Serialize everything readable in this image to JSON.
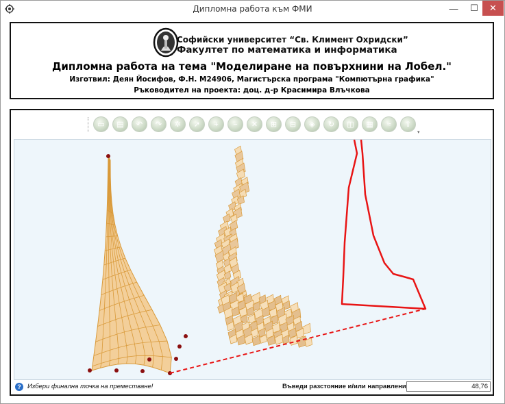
{
  "window": {
    "title": "Дипломна работа към ФМИ",
    "minimize_glyph": "—",
    "maximize_glyph": "☐",
    "close_glyph": "✕"
  },
  "header": {
    "university": "Софийски университет “Св. Климент Охридски”",
    "faculty": "Факултет по математика и информатика",
    "thesis_title": "Дипломна работа на тема \"Моделиране на повърхнини на Лобел.\"",
    "author_line": "Изготвил: Деян Йосифов, Ф.Н. M24906, Магистърска програма \"Компютърна графика\"",
    "advisor_line": "Ръководител на проекта: доц. д-р Красимира Влъчкова"
  },
  "toolbar": {
    "buttons": [
      {
        "name": "open-file-icon"
      },
      {
        "name": "save-icon"
      },
      {
        "name": "undo-icon"
      },
      {
        "name": "redo-icon"
      },
      {
        "name": "settings-gear-icon"
      },
      {
        "name": "select-cursor-icon"
      },
      {
        "name": "add-icon"
      },
      {
        "name": "remove-icon"
      },
      {
        "name": "delete-icon"
      },
      {
        "name": "move-point-icon"
      },
      {
        "name": "subdivide-icon"
      },
      {
        "name": "mesh-icon"
      },
      {
        "name": "rotate-icon"
      },
      {
        "name": "reflect-icon"
      },
      {
        "name": "surface-icon"
      },
      {
        "name": "smooth-icon"
      },
      {
        "name": "export-icon"
      }
    ],
    "overflow_glyph": "▾"
  },
  "status": {
    "help_glyph": "?",
    "message": "Избери финална точка на преместване!",
    "distance_label": "Въведи разстояние и/или направление:",
    "distance_value": "48,76"
  },
  "colors": {
    "viewport_bg": "#eef6fb",
    "surface_fill": "#f3cf9a",
    "surface_line": "#d99a3a",
    "control_point": "#8b1010",
    "polyline": "#e81414",
    "close_button": "#c75050"
  }
}
